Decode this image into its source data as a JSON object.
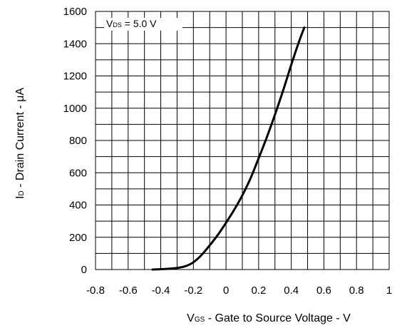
{
  "chart_data": {
    "type": "line",
    "xlabel": {
      "main": "V",
      "sub": "GS",
      "rest": " - Gate to Source Voltage - V"
    },
    "ylabel": {
      "main": "I",
      "sub": "D",
      "rest": " - Drain Current - μA"
    },
    "xlim": [
      -0.8,
      1.0
    ],
    "ylim": [
      0,
      1600
    ],
    "x_ticks": [
      -0.8,
      -0.6,
      -0.4,
      -0.2,
      0,
      0.2,
      0.4,
      0.6,
      0.8,
      1
    ],
    "x_tick_labels": [
      "-0.8",
      "-0.6",
      "-0.4",
      "-0.2",
      "0",
      "0.2",
      "0.4",
      "0.6",
      "0.8",
      "1"
    ],
    "y_ticks": [
      0,
      200,
      400,
      600,
      800,
      1000,
      1200,
      1400,
      1600
    ],
    "y_tick_labels": [
      "0",
      "200",
      "400",
      "600",
      "800",
      "1000",
      "1200",
      "1400",
      "1600"
    ],
    "grid": true,
    "annotation": {
      "main": "V",
      "sub": "DS",
      "rest": " = 5.0 V"
    },
    "series": [
      {
        "color": "#000000",
        "x": [
          -0.45,
          -0.4,
          -0.35,
          -0.3,
          -0.25,
          -0.2,
          -0.15,
          -0.1,
          -0.05,
          0.0,
          0.05,
          0.1,
          0.15,
          0.2,
          0.25,
          0.3,
          0.35,
          0.4,
          0.45,
          0.48
        ],
        "y": [
          0,
          2,
          5,
          10,
          20,
          45,
          90,
          150,
          215,
          290,
          370,
          460,
          565,
          690,
          820,
          960,
          1110,
          1270,
          1420,
          1500
        ]
      }
    ]
  }
}
